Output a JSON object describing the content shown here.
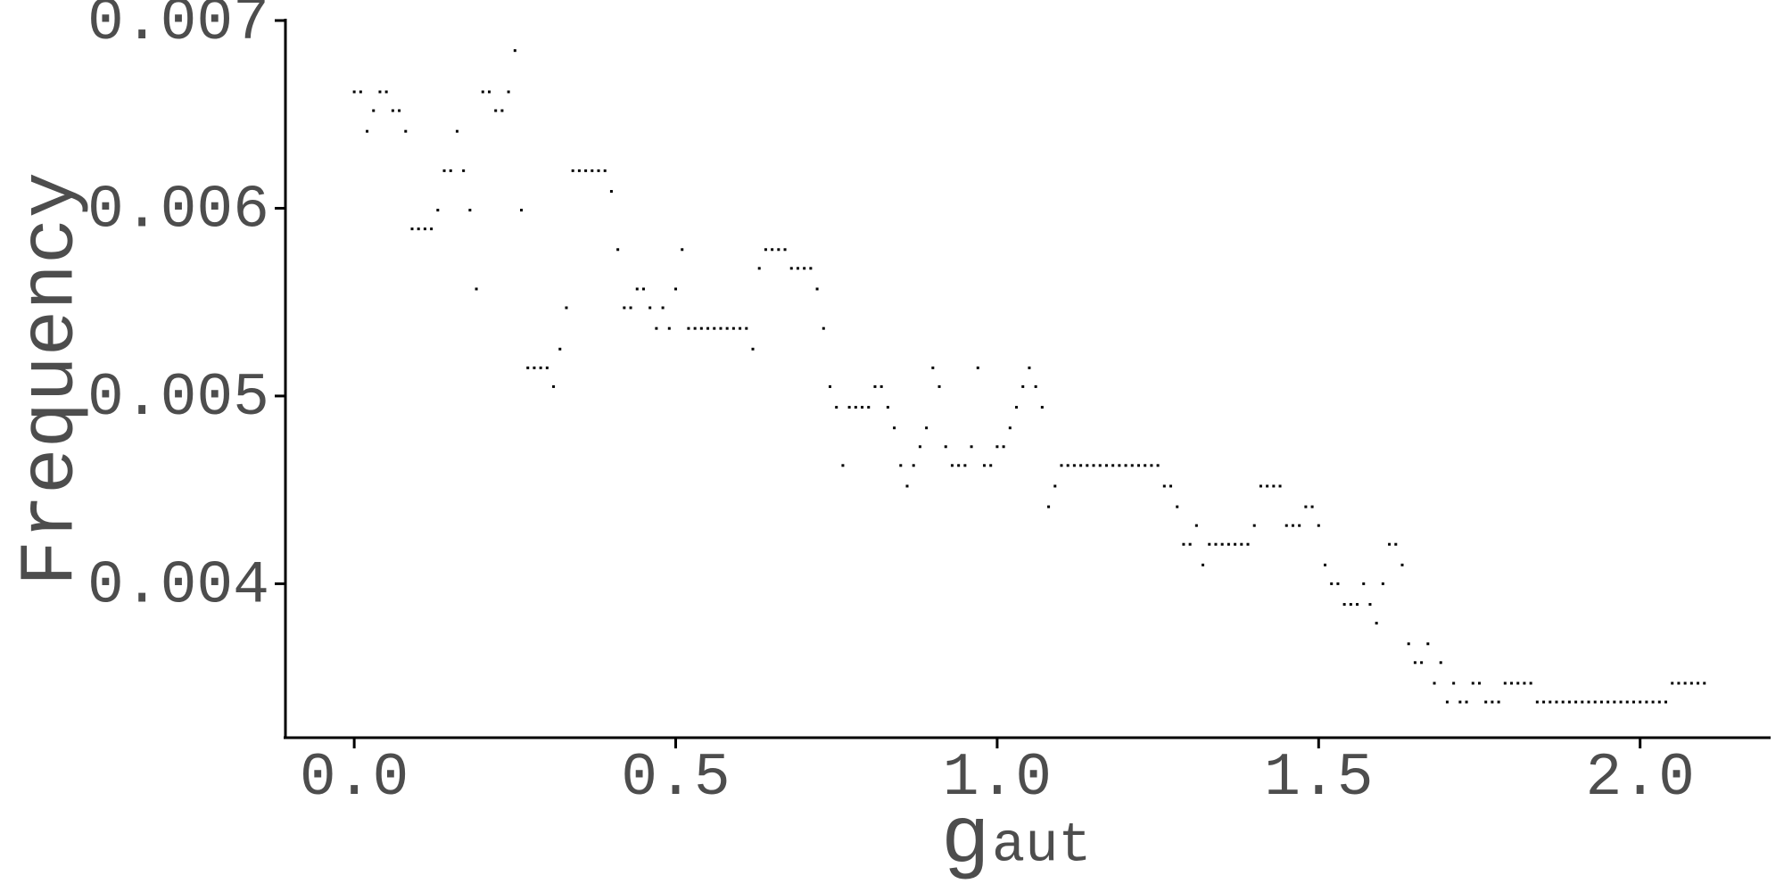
{
  "chart_data": {
    "type": "scatter",
    "y_label": "Frequency",
    "x_label": "g",
    "x_label_subscript": "aut",
    "x": [
      0,
      0.01,
      0.02,
      0.03,
      0.04,
      0.05,
      0.06,
      0.07,
      0.08,
      0.09,
      0.1,
      0.11,
      0.12,
      0.13,
      0.14,
      0.15,
      0.16,
      0.17,
      0.18,
      0.19,
      0.2,
      0.21,
      0.22,
      0.23,
      0.24,
      0.25,
      0.26,
      0.27,
      0.28,
      0.29,
      0.3,
      0.31,
      0.32,
      0.33,
      0.34,
      0.35,
      0.36,
      0.37,
      0.38,
      0.39,
      0.4,
      0.41,
      0.42,
      0.43,
      0.44,
      0.45,
      0.46,
      0.47,
      0.48,
      0.49,
      0.5,
      0.51,
      0.52,
      0.53,
      0.54,
      0.55,
      0.56,
      0.57,
      0.58,
      0.59,
      0.6,
      0.61,
      0.62,
      0.63,
      0.64,
      0.65,
      0.66,
      0.67,
      0.68,
      0.69,
      0.7,
      0.71,
      0.72,
      0.73,
      0.74,
      0.75,
      0.76,
      0.77,
      0.78,
      0.79,
      0.8,
      0.81,
      0.82,
      0.83,
      0.84,
      0.85,
      0.86,
      0.87,
      0.88,
      0.89,
      0.9,
      0.91,
      0.92,
      0.93,
      0.94,
      0.95,
      0.96,
      0.97,
      0.98,
      0.99,
      1,
      1.01,
      1.02,
      1.03,
      1.04,
      1.05,
      1.06,
      1.07,
      1.08,
      1.09,
      1.1,
      1.11,
      1.12,
      1.13,
      1.14,
      1.15,
      1.16,
      1.17,
      1.18,
      1.19,
      1.2,
      1.21,
      1.22,
      1.23,
      1.24,
      1.25,
      1.26,
      1.27,
      1.28,
      1.29,
      1.3,
      1.31,
      1.32,
      1.33,
      1.34,
      1.35,
      1.36,
      1.37,
      1.38,
      1.39,
      1.4,
      1.41,
      1.42,
      1.43,
      1.44,
      1.45,
      1.46,
      1.47,
      1.48,
      1.49,
      1.5,
      1.51,
      1.52,
      1.53,
      1.54,
      1.55,
      1.56,
      1.57,
      1.58,
      1.59,
      1.6,
      1.61,
      1.62,
      1.63,
      1.64,
      1.65,
      1.66,
      1.67,
      1.68,
      1.69,
      1.7,
      1.71,
      1.72,
      1.73,
      1.74,
      1.75,
      1.76,
      1.77,
      1.78,
      1.79,
      1.8,
      1.81,
      1.82,
      1.83,
      1.84,
      1.85,
      1.86,
      1.87,
      1.88,
      1.89,
      1.9,
      1.91,
      1.92,
      1.93,
      1.94,
      1.95,
      1.96,
      1.97,
      1.98,
      1.99,
      2,
      2.01,
      2.02,
      2.03,
      2.04,
      2.05,
      2.06,
      2.07,
      2.08,
      2.09,
      2.1
    ],
    "values": [
      0.00662,
      0.00662,
      0.00641,
      0.00652,
      0.00662,
      0.00662,
      0.00652,
      0.00652,
      0.00641,
      0.00589,
      0.00589,
      0.00589,
      0.00589,
      0.00599,
      0.0062,
      0.0062,
      0.00641,
      0.0062,
      0.00599,
      0.00557,
      0.00662,
      0.00662,
      0.00652,
      0.00652,
      0.00662,
      0.00684,
      0.00599,
      0.00515,
      0.00515,
      0.00515,
      0.00515,
      0.00505,
      0.00525,
      0.00547,
      0.0062,
      0.0062,
      0.0062,
      0.0062,
      0.0062,
      0.0062,
      0.00609,
      0.00578,
      0.00547,
      0.00547,
      0.00557,
      0.00557,
      0.00547,
      0.00536,
      0.00547,
      0.00536,
      0.00557,
      0.00578,
      0.00536,
      0.00536,
      0.00536,
      0.00536,
      0.00536,
      0.00536,
      0.00536,
      0.00536,
      0.00536,
      0.00536,
      0.00525,
      0.00568,
      0.00578,
      0.00578,
      0.00578,
      0.00578,
      0.00568,
      0.00568,
      0.00568,
      0.00568,
      0.00557,
      0.00536,
      0.00505,
      0.00494,
      0.00463,
      0.00494,
      0.00494,
      0.00494,
      0.00494,
      0.00505,
      0.00505,
      0.00494,
      0.00483,
      0.00463,
      0.00452,
      0.00463,
      0.00473,
      0.00483,
      0.00515,
      0.00505,
      0.00473,
      0.00463,
      0.00463,
      0.00463,
      0.00473,
      0.00515,
      0.00463,
      0.00463,
      0.00473,
      0.00473,
      0.00483,
      0.00494,
      0.00505,
      0.00515,
      0.00505,
      0.00494,
      0.00441,
      0.00452,
      0.00463,
      0.00463,
      0.00463,
      0.00463,
      0.00463,
      0.00463,
      0.00463,
      0.00463,
      0.00463,
      0.00463,
      0.00463,
      0.00463,
      0.00463,
      0.00463,
      0.00463,
      0.00463,
      0.00452,
      0.00452,
      0.00441,
      0.00421,
      0.00421,
      0.00431,
      0.0041,
      0.00421,
      0.00421,
      0.00421,
      0.00421,
      0.00421,
      0.00421,
      0.00421,
      0.00431,
      0.00452,
      0.00452,
      0.00452,
      0.00452,
      0.00431,
      0.00431,
      0.00431,
      0.00441,
      0.00441,
      0.00431,
      0.0041,
      0.004,
      0.004,
      0.00389,
      0.00389,
      0.00389,
      0.004,
      0.00389,
      0.00379,
      0.004,
      0.00421,
      0.00421,
      0.0041,
      0.00368,
      0.00358,
      0.00358,
      0.00368,
      0.00347,
      0.00358,
      0.00337,
      0.00347,
      0.00337,
      0.00337,
      0.00347,
      0.00347,
      0.00337,
      0.00337,
      0.00337,
      0.00347,
      0.00347,
      0.00347,
      0.00347,
      0.00347,
      0.00337,
      0.00337,
      0.00337,
      0.00337,
      0.00337,
      0.00337,
      0.00337,
      0.00337,
      0.00337,
      0.00337,
      0.00337,
      0.00337,
      0.00337,
      0.00337,
      0.00337,
      0.00337,
      0.00337,
      0.00337,
      0.00337,
      0.00337,
      0.00337,
      0.00347,
      0.00347,
      0.00347,
      0.00347,
      0.00347,
      0.00347
    ],
    "color": "#000000",
    "xlim": [
      -0.107,
      2.203
    ],
    "ylim": [
      0.00318,
      0.007
    ],
    "xticks": [
      {
        "value": 0,
        "label": "0.0"
      },
      0.5,
      {
        "value": 1,
        "label": "1.0"
      },
      1.5,
      {
        "value": 2,
        "label": "2.0"
      }
    ],
    "yticks": [
      0.004,
      0.005,
      0.006,
      0.007
    ],
    "grid": false
  }
}
